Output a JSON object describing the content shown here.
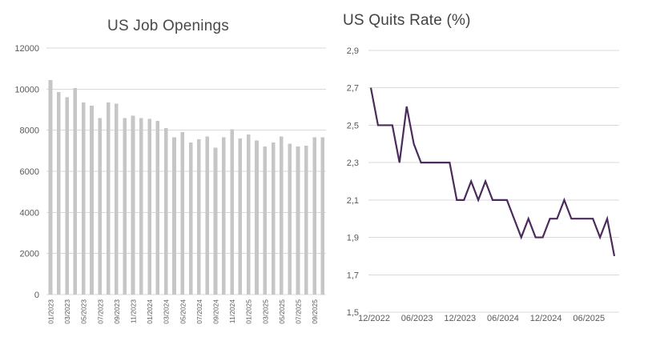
{
  "page": {
    "background": "#ffffff"
  },
  "chart_data": [
    {
      "id": "job-openings",
      "type": "bar",
      "title": "US Job Openings",
      "categories": [
        "01/2023",
        "02/2023",
        "03/2023",
        "04/2023",
        "05/2023",
        "06/2023",
        "07/2023",
        "08/2023",
        "09/2023",
        "10/2023",
        "11/2023",
        "12/2023",
        "01/2024",
        "02/2024",
        "03/2024",
        "04/2024",
        "05/2024",
        "06/2024",
        "07/2024",
        "08/2024",
        "09/2024",
        "10/2024",
        "11/2024",
        "12/2024",
        "01/2025",
        "02/2025",
        "03/2025",
        "04/2025",
        "05/2025",
        "06/2025",
        "07/2025",
        "08/2025",
        "09/2025",
        "10/2025"
      ],
      "values": [
        10450,
        9850,
        9600,
        10050,
        9350,
        9200,
        8600,
        9350,
        9300,
        8600,
        8700,
        8600,
        8550,
        8450,
        8100,
        7650,
        7900,
        7400,
        7550,
        7700,
        7150,
        7650,
        8050,
        7600,
        7800,
        7500,
        7200,
        7400,
        7700,
        7350,
        7200,
        7250,
        7650,
        7650
      ],
      "ylim": [
        0,
        12000
      ],
      "yticks": [
        12000,
        10000,
        8000,
        6000,
        4000,
        2000,
        0
      ],
      "xtick_every": 2,
      "xtick_labels_shown": [
        "01/2023",
        "03/2023",
        "05/2023",
        "07/2023",
        "09/2023",
        "11/2023",
        "01/2024",
        "03/2024",
        "05/2024",
        "07/2024",
        "09/2024",
        "11/2024",
        "01/2025",
        "03/2025",
        "05/2025",
        "07/2025",
        "09/2025"
      ],
      "grid": "horizontal",
      "legend": "none",
      "xlabel": "",
      "ylabel": "",
      "bar_color": "#c6c6c6",
      "grid_color": "#d9d9d9",
      "axis_label_color": "#595959",
      "title_color": "#4a4a4a"
    },
    {
      "id": "quits-rate",
      "type": "line",
      "title": "US Quits Rate (%)",
      "categories": [
        "12/2022",
        "01/2023",
        "02/2023",
        "03/2023",
        "04/2023",
        "05/2023",
        "06/2023",
        "07/2023",
        "08/2023",
        "09/2023",
        "10/2023",
        "11/2023",
        "12/2023",
        "01/2024",
        "02/2024",
        "03/2024",
        "04/2024",
        "05/2024",
        "06/2024",
        "07/2024",
        "08/2024",
        "09/2024",
        "10/2024",
        "11/2024",
        "12/2024",
        "01/2025",
        "02/2025",
        "03/2025",
        "04/2025",
        "05/2025",
        "06/2025",
        "07/2025",
        "08/2025",
        "09/2025",
        "10/2025"
      ],
      "values": [
        2.7,
        2.5,
        2.5,
        2.5,
        2.3,
        2.6,
        2.4,
        2.3,
        2.3,
        2.3,
        2.3,
        2.3,
        2.1,
        2.1,
        2.2,
        2.1,
        2.2,
        2.1,
        2.1,
        2.1,
        2.0,
        1.9,
        2.0,
        1.9,
        1.9,
        2.0,
        2.0,
        2.1,
        2.0,
        2.0,
        2.0,
        2.0,
        1.9,
        2.0,
        1.8
      ],
      "ylim": [
        1.5,
        2.9
      ],
      "ytick_values": [
        2.9,
        2.7,
        2.5,
        2.3,
        2.1,
        1.9,
        1.7,
        1.5
      ],
      "ytick_labels": [
        "2,9",
        "2,7",
        "2,5",
        "2,3",
        "2,1",
        "1,9",
        "1,7",
        "1,5"
      ],
      "xticks": [
        "12/2022",
        "06/2023",
        "12/2023",
        "06/2024",
        "12/2024",
        "06/2025"
      ],
      "decimal_separator": "comma",
      "grid": "horizontal",
      "legend": "none",
      "xlabel": "",
      "ylabel": "",
      "line_color": "#4a2b5c",
      "grid_color": "#d9d9d9",
      "axis_label_color": "#595959",
      "title_color": "#424242"
    }
  ]
}
